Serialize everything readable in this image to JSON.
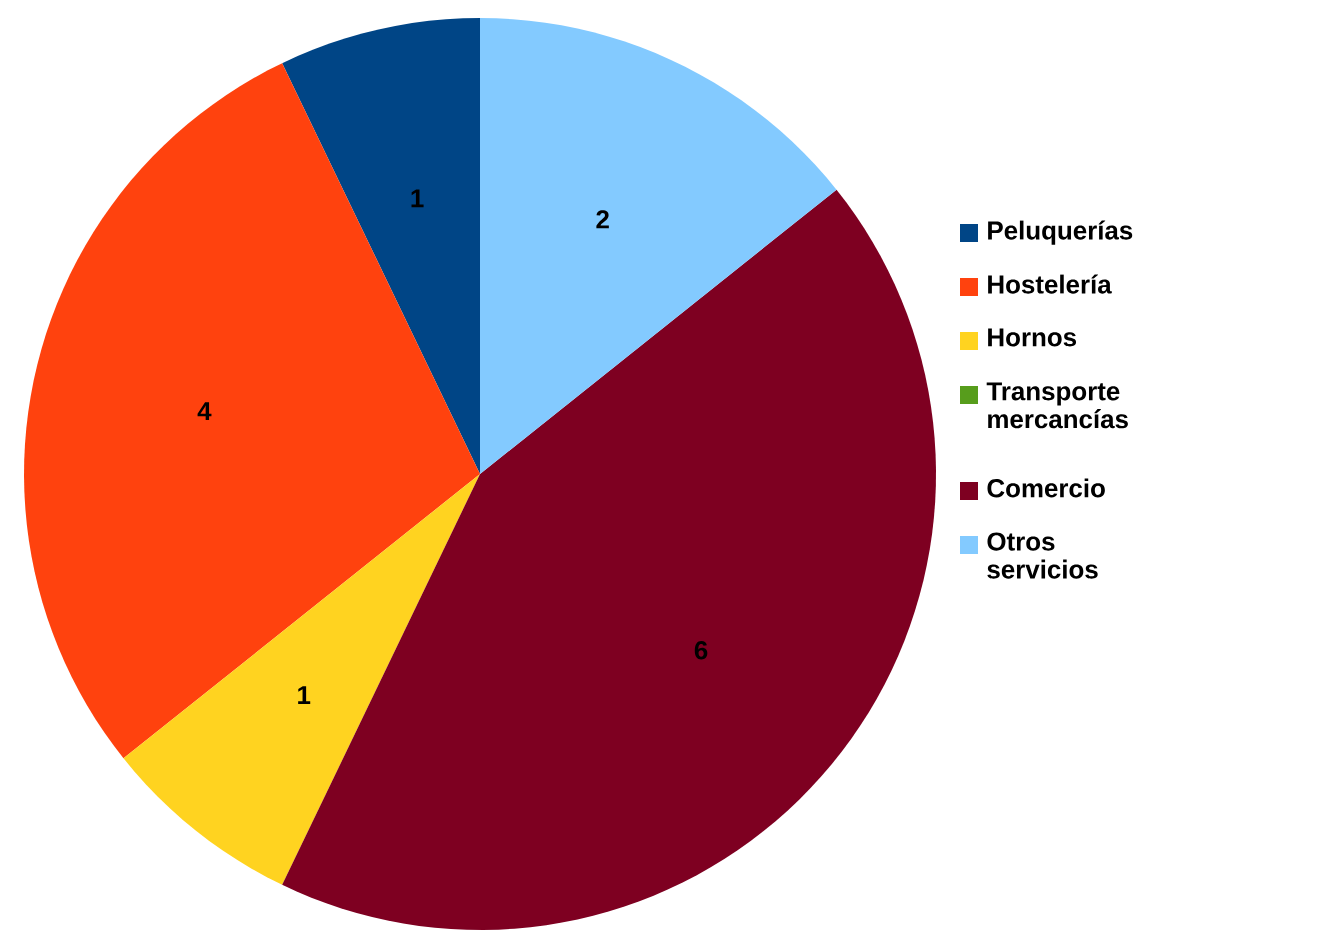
{
  "chart_data": {
    "type": "pie",
    "categories": [
      "Peluquerías",
      "Hostelería",
      "Hornos",
      "Transporte mercancías",
      "Comercio",
      "Otros servicios"
    ],
    "values": [
      1,
      4,
      1,
      0,
      6,
      2
    ],
    "colors": [
      "#004586",
      "#ff420e",
      "#ffd320",
      "#579d1c",
      "#7e0021",
      "#83caff"
    ],
    "value_labels": [
      "1",
      "4",
      "1",
      null,
      "6",
      "2"
    ],
    "legend": "right"
  }
}
